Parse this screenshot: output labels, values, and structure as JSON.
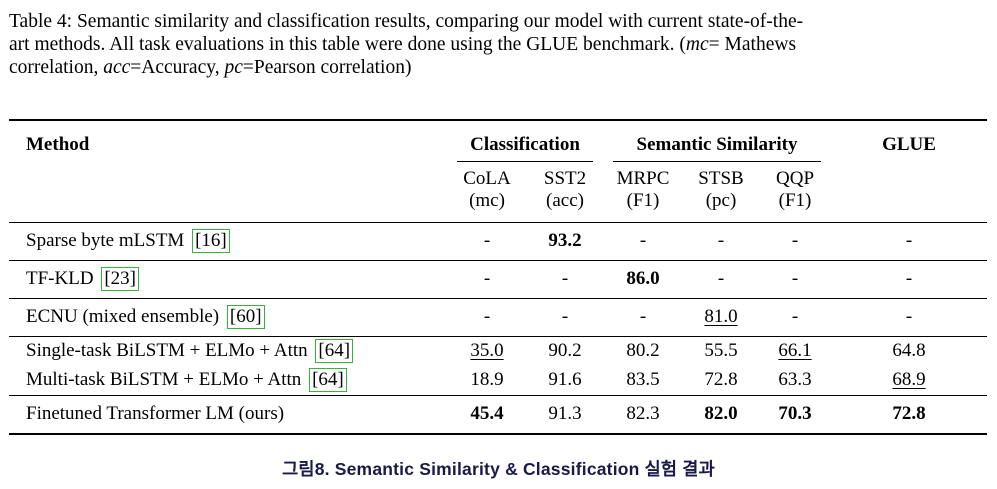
{
  "colors": {
    "background": "#ffffff",
    "text": "#000000",
    "citation_box_border": "#35b535",
    "figure_caption_text": "#1a1a4a"
  },
  "table_caption": {
    "line1": "Table 4: Semantic similarity and classification results, comparing our model with current state-of-the-",
    "line2_pre": "art methods. All task evaluations in this table were done using the GLUE benchmark. (",
    "line2_mc": "mc",
    "line2_post": "= Mathews",
    "line3_p1": "correlation, ",
    "line3_acc": "acc",
    "line3_p2": "=Accuracy, ",
    "line3_pc": "pc",
    "line3_p3": "=Pearson correlation)"
  },
  "table": {
    "header": {
      "method": "Method",
      "classification": "Classification",
      "semantic_similarity": "Semantic Similarity",
      "glue": "GLUE",
      "columns": [
        {
          "task": "CoLA",
          "metric": "(mc)"
        },
        {
          "task": "SST2",
          "metric": "(acc)"
        },
        {
          "task": "MRPC",
          "metric": "(F1)"
        },
        {
          "task": "STSB",
          "metric": "(pc)"
        },
        {
          "task": "QQP",
          "metric": "(F1)"
        }
      ]
    },
    "rows": [
      {
        "method": "Sparse byte mLSTM",
        "citation": "[16]",
        "rule_below": true,
        "tight": false,
        "cells": [
          {
            "t": "-"
          },
          {
            "t": "93.2",
            "b": true
          },
          {
            "t": "-"
          },
          {
            "t": "-"
          },
          {
            "t": "-"
          },
          {
            "t": "-"
          }
        ]
      },
      {
        "method": "TF-KLD",
        "citation": "[23]",
        "rule_below": true,
        "tight": false,
        "cells": [
          {
            "t": "-"
          },
          {
            "t": "-"
          },
          {
            "t": "86.0",
            "b": true
          },
          {
            "t": "-"
          },
          {
            "t": "-"
          },
          {
            "t": "-"
          }
        ]
      },
      {
        "method": "ECNU (mixed ensemble)",
        "citation": "[60]",
        "rule_below": true,
        "tight": false,
        "cells": [
          {
            "t": "-"
          },
          {
            "t": "-"
          },
          {
            "t": "-"
          },
          {
            "t": "81.0",
            "u": true
          },
          {
            "t": "-"
          },
          {
            "t": "-"
          }
        ]
      },
      {
        "method": "Single-task BiLSTM + ELMo + Attn",
        "citation": "[64]",
        "rule_below": false,
        "tight": true,
        "cells": [
          {
            "t": "35.0",
            "u": true
          },
          {
            "t": "90.2"
          },
          {
            "t": "80.2"
          },
          {
            "t": "55.5"
          },
          {
            "t": "66.1",
            "u": true
          },
          {
            "t": "64.8"
          }
        ]
      },
      {
        "method": "Multi-task BiLSTM + ELMo + Attn",
        "citation": "[64]",
        "rule_below": true,
        "tight": true,
        "cells": [
          {
            "t": "18.9"
          },
          {
            "t": "91.6"
          },
          {
            "t": "83.5"
          },
          {
            "t": "72.8"
          },
          {
            "t": "63.3"
          },
          {
            "t": "68.9",
            "u": true
          }
        ]
      },
      {
        "method": "Finetuned Transformer LM (ours)",
        "citation": null,
        "rule_below": false,
        "tight": false,
        "cells": [
          {
            "t": "45.4",
            "b": true
          },
          {
            "t": "91.3"
          },
          {
            "t": "82.3"
          },
          {
            "t": "82.0",
            "b": true
          },
          {
            "t": "70.3",
            "b": true
          },
          {
            "t": "72.8",
            "b": true
          }
        ]
      }
    ]
  },
  "figure_caption": {
    "text": "그림8. Semantic Similarity & Classification 실험 결과"
  }
}
